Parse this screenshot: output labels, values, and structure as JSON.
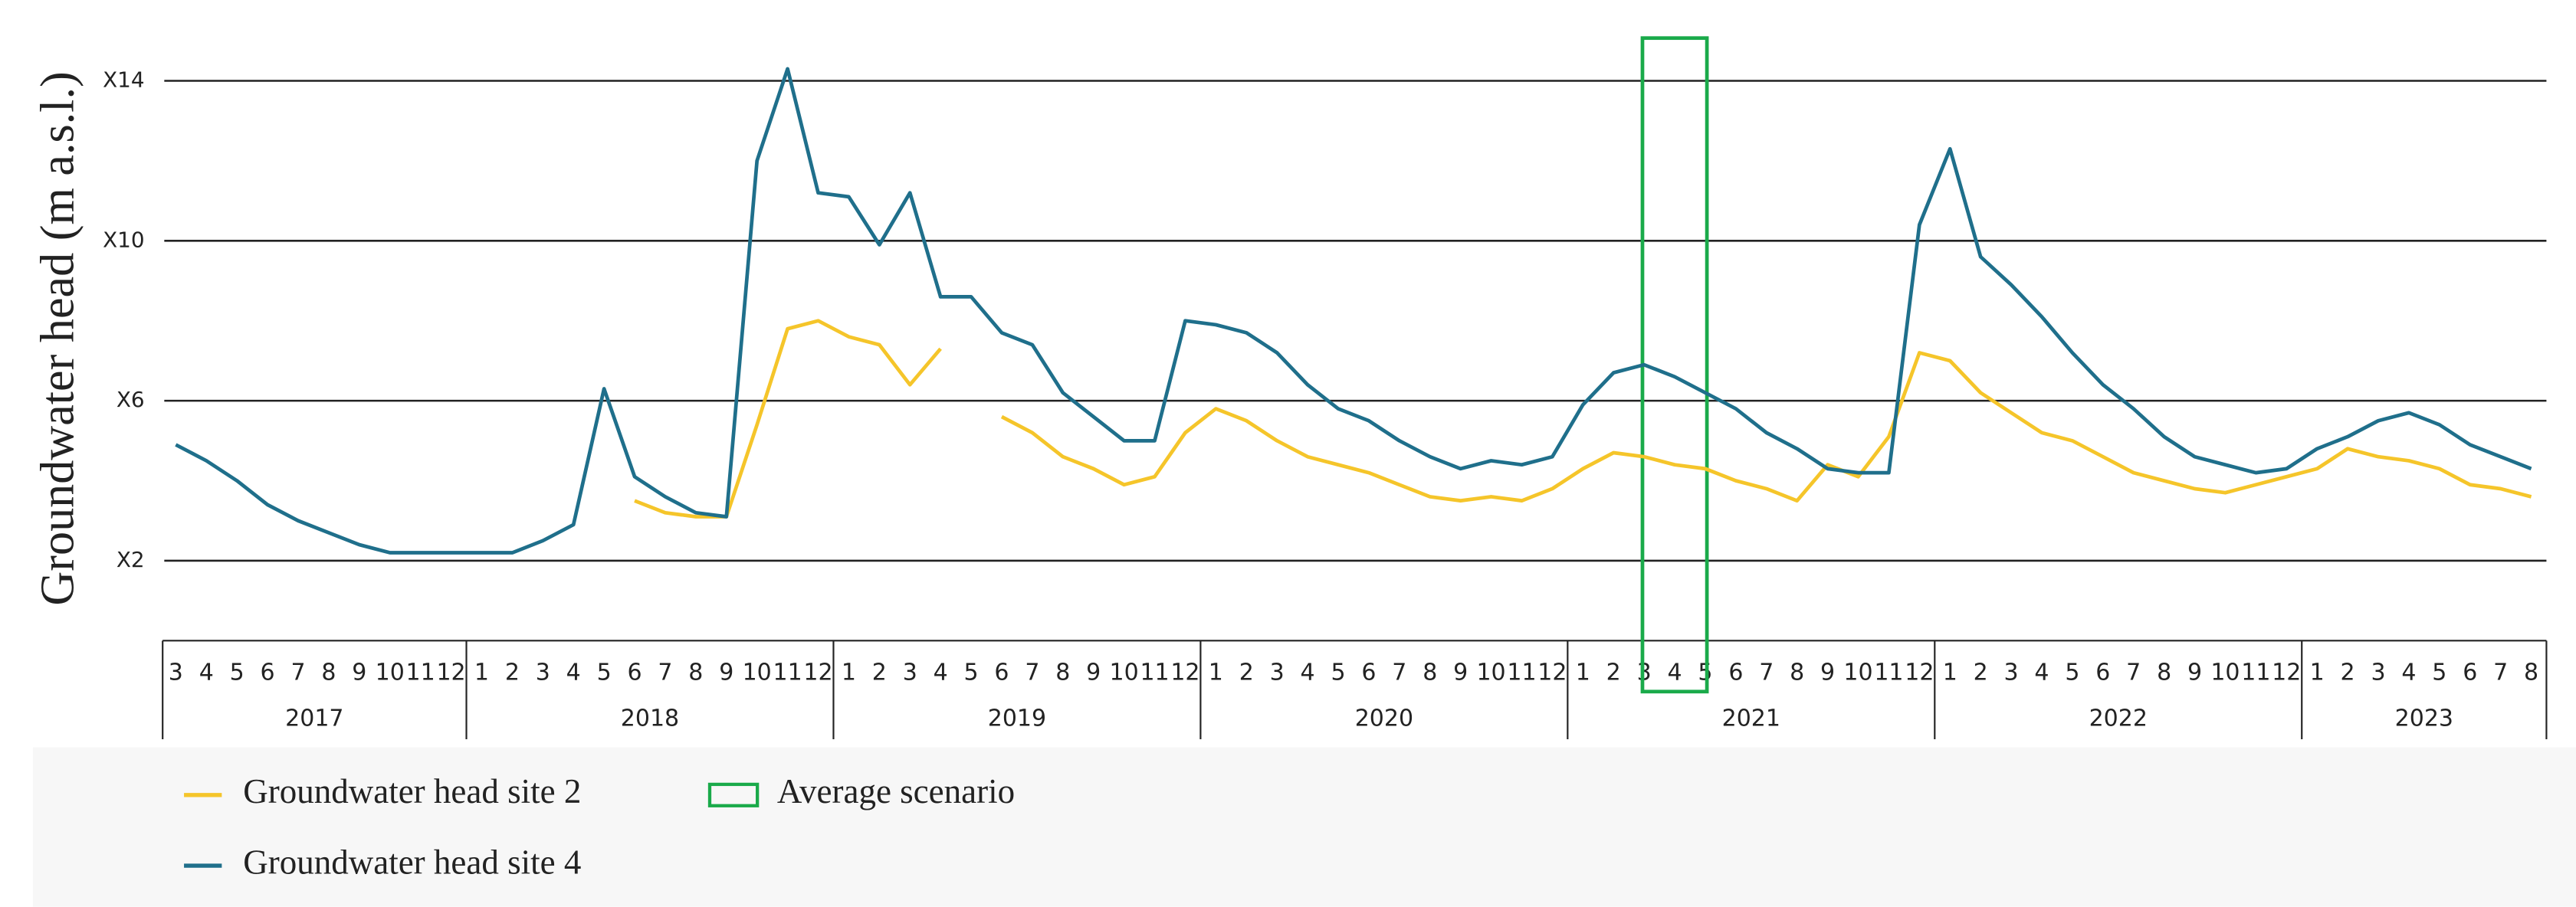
{
  "chart_data": {
    "type": "line",
    "ylabel": "Groundwater head (m a.s.l.)",
    "ylim": [
      0,
      15.5
    ],
    "yticks": [
      {
        "value": 2,
        "label": "X2"
      },
      {
        "value": 6,
        "label": "X6"
      },
      {
        "value": 10,
        "label": "X10"
      },
      {
        "value": 14,
        "label": "X14"
      }
    ],
    "grid": true,
    "categories": [
      "3",
      "4",
      "5",
      "6",
      "7",
      "8",
      "9",
      "10",
      "11",
      "12",
      "1",
      "2",
      "3",
      "4",
      "5",
      "6",
      "7",
      "8",
      "9",
      "10",
      "11",
      "12",
      "1",
      "2",
      "3",
      "4",
      "5",
      "6",
      "7",
      "8",
      "9",
      "10",
      "11",
      "12",
      "1",
      "2",
      "3",
      "4",
      "5",
      "6",
      "7",
      "8",
      "9",
      "10",
      "11",
      "12",
      "1",
      "2",
      "3",
      "4",
      "5",
      "6",
      "7",
      "8",
      "9",
      "10",
      "11",
      "12",
      "1",
      "2",
      "3",
      "4",
      "5",
      "6",
      "7",
      "8",
      "9",
      "10",
      "11",
      "12",
      "1",
      "2",
      "3",
      "4",
      "5",
      "6",
      "7",
      "8"
    ],
    "years": [
      "2017",
      "2018",
      "2019",
      "2020",
      "2021",
      "2022",
      "2023"
    ],
    "series": [
      {
        "name": "Groundwater head site 2",
        "color": "#f5c52a",
        "values": [
          null,
          null,
          null,
          null,
          null,
          null,
          null,
          null,
          null,
          null,
          null,
          null,
          null,
          null,
          null,
          3.5,
          3.2,
          3.1,
          3.1,
          5.4,
          7.8,
          8.0,
          7.6,
          7.4,
          6.4,
          7.3,
          null,
          5.6,
          5.2,
          4.6,
          4.3,
          3.9,
          4.1,
          5.2,
          5.8,
          5.5,
          5.0,
          4.6,
          4.4,
          4.2,
          3.9,
          3.6,
          3.5,
          3.6,
          3.5,
          3.8,
          4.3,
          4.7,
          4.6,
          4.4,
          4.3,
          4.0,
          3.8,
          3.5,
          4.4,
          4.1,
          5.1,
          7.2,
          7.0,
          6.2,
          5.7,
          5.2,
          5.0,
          4.6,
          4.2,
          4.0,
          3.8,
          3.7,
          3.9,
          4.1,
          4.3,
          4.8,
          4.6,
          4.5,
          4.3,
          3.9,
          3.8,
          3.6
        ]
      },
      {
        "name": "Groundwater head site 4",
        "color": "#1f6f8b",
        "values": [
          4.9,
          4.5,
          4.0,
          3.4,
          3.0,
          2.7,
          2.4,
          2.2,
          2.2,
          2.2,
          2.2,
          2.2,
          2.5,
          2.9,
          6.3,
          4.1,
          3.6,
          3.2,
          3.1,
          12.0,
          14.3,
          11.2,
          11.1,
          9.9,
          11.2,
          8.6,
          8.6,
          7.7,
          7.4,
          6.2,
          5.6,
          5.0,
          5.0,
          8.0,
          7.9,
          7.7,
          7.2,
          6.4,
          5.8,
          5.5,
          5.0,
          4.6,
          4.3,
          4.5,
          4.4,
          4.6,
          5.9,
          6.7,
          6.9,
          6.6,
          6.2,
          5.8,
          5.2,
          4.8,
          4.3,
          4.2,
          4.2,
          10.4,
          12.3,
          9.6,
          8.9,
          8.1,
          7.2,
          6.4,
          5.8,
          5.1,
          4.6,
          4.4,
          4.2,
          4.3,
          4.8,
          5.1,
          5.5,
          5.7,
          5.4,
          4.9,
          4.6,
          4.3
        ]
      }
    ],
    "highlight": {
      "name": "Average scenario",
      "color": "#1aaa4a",
      "year": "2021",
      "months": [
        "3",
        "5"
      ]
    }
  }
}
